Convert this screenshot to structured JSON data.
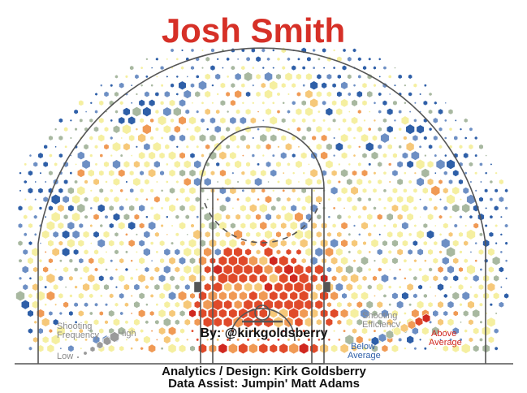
{
  "chart_data": {
    "type": "hexbin shot chart",
    "title": "Josh Smith",
    "byline": "By: @kirkgoldsberry",
    "legend": {
      "frequency_label_1": "Shooting",
      "frequency_label_2": "Frequency",
      "frequency_low": "Low",
      "frequency_high": "High",
      "efficiency_label_1": "Shooting",
      "efficiency_label_2": "Efficiency",
      "efficiency_below_1": "Below",
      "efficiency_below_2": "Average",
      "efficiency_above_1": "Above",
      "efficiency_above_2": "Average"
    },
    "credits": {
      "line1": "Analytics / Design: Kirk Goldsberry",
      "line2": "Data Assist: Jumpin' Matt Adams"
    },
    "efficiency_colors": {
      "well_below": "#2e5fa8",
      "below": "#6d8fc4",
      "slightly_below": "#a8b8a0",
      "average": "#f5efa0",
      "slightly_above": "#f6c879",
      "above": "#f09a55",
      "well_above": "#e04a2a",
      "far_above": "#d02820"
    },
    "court_color": "#555555"
  }
}
